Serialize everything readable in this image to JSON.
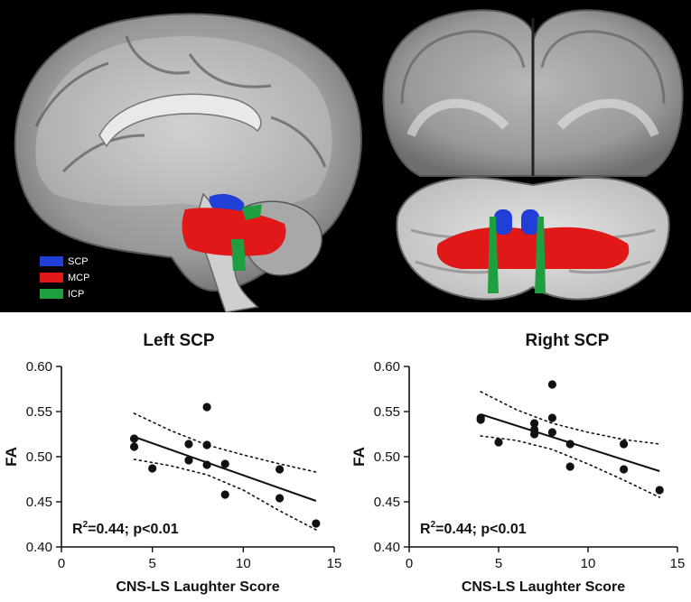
{
  "legend": {
    "items": [
      {
        "label": "SCP",
        "color": "#1f3fd6"
      },
      {
        "label": "MCP",
        "color": "#e01818"
      },
      {
        "label": "ICP",
        "color": "#1fa040"
      }
    ]
  },
  "chart_data": [
    {
      "type": "scatter",
      "title": "Left  SCP",
      "xlabel": "CNS-LS Laughter Score",
      "ylabel": "FA",
      "xlim": [
        0,
        15
      ],
      "ylim": [
        0.4,
        0.6
      ],
      "xticks": [
        "0",
        "5",
        "10",
        "15"
      ],
      "yticks": [
        "0.40",
        "0.45",
        "0.50",
        "0.55",
        "0.60"
      ],
      "annotation": {
        "prefix": "R",
        "sup": "2",
        "text": "=0.44; p<0.01"
      },
      "points": [
        {
          "x": 4,
          "y": 0.52
        },
        {
          "x": 4,
          "y": 0.511
        },
        {
          "x": 5,
          "y": 0.487
        },
        {
          "x": 7,
          "y": 0.514
        },
        {
          "x": 7,
          "y": 0.496
        },
        {
          "x": 8,
          "y": 0.555
        },
        {
          "x": 8,
          "y": 0.513
        },
        {
          "x": 8,
          "y": 0.491
        },
        {
          "x": 9,
          "y": 0.492
        },
        {
          "x": 9,
          "y": 0.458
        },
        {
          "x": 12,
          "y": 0.486
        },
        {
          "x": 12,
          "y": 0.454
        },
        {
          "x": 14,
          "y": 0.426
        }
      ],
      "fit": {
        "x": [
          4,
          14
        ],
        "y": [
          0.522,
          0.451
        ]
      },
      "ci_upper": {
        "x": [
          4,
          6,
          8,
          10,
          12,
          14
        ],
        "y": [
          0.548,
          0.529,
          0.513,
          0.502,
          0.492,
          0.483
        ]
      },
      "ci_lower": {
        "x": [
          4,
          6,
          8,
          10,
          12,
          14
        ],
        "y": [
          0.497,
          0.49,
          0.48,
          0.463,
          0.44,
          0.419
        ]
      }
    },
    {
      "type": "scatter",
      "title": "Right SCP",
      "xlabel": "CNS-LS Laughter Score",
      "ylabel": "FA",
      "xlim": [
        0,
        15
      ],
      "ylim": [
        0.4,
        0.6
      ],
      "xticks": [
        "0",
        "5",
        "10",
        "15"
      ],
      "yticks": [
        "0.40",
        "0.45",
        "0.50",
        "0.55",
        "0.60"
      ],
      "annotation": {
        "prefix": "R",
        "sup": "2",
        "text": "=0.44; p<0.01"
      },
      "points": [
        {
          "x": 4,
          "y": 0.543
        },
        {
          "x": 4,
          "y": 0.541
        },
        {
          "x": 5,
          "y": 0.516
        },
        {
          "x": 7,
          "y": 0.537
        },
        {
          "x": 7,
          "y": 0.53
        },
        {
          "x": 7,
          "y": 0.525
        },
        {
          "x": 8,
          "y": 0.58
        },
        {
          "x": 8,
          "y": 0.543
        },
        {
          "x": 8,
          "y": 0.527
        },
        {
          "x": 9,
          "y": 0.514
        },
        {
          "x": 9,
          "y": 0.489
        },
        {
          "x": 12,
          "y": 0.514
        },
        {
          "x": 12,
          "y": 0.486
        },
        {
          "x": 14,
          "y": 0.463
        }
      ],
      "fit": {
        "x": [
          4,
          14
        ],
        "y": [
          0.547,
          0.484
        ]
      },
      "ci_upper": {
        "x": [
          4,
          6,
          8,
          10,
          12,
          14
        ],
        "y": [
          0.572,
          0.552,
          0.537,
          0.527,
          0.519,
          0.514
        ]
      },
      "ci_lower": {
        "x": [
          4,
          6,
          8,
          10,
          12,
          14
        ],
        "y": [
          0.523,
          0.518,
          0.508,
          0.492,
          0.474,
          0.455
        ]
      }
    }
  ]
}
